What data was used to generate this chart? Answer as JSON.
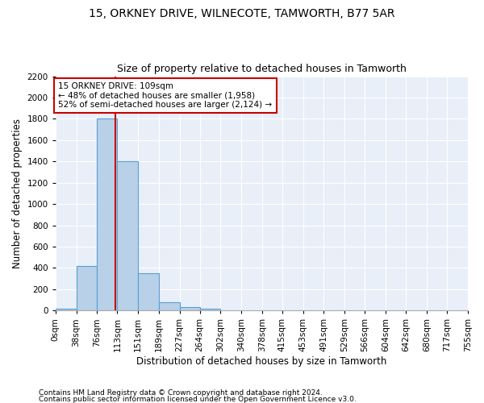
{
  "title1": "15, ORKNEY DRIVE, WILNECOTE, TAMWORTH, B77 5AR",
  "title2": "Size of property relative to detached houses in Tamworth",
  "xlabel": "Distribution of detached houses by size in Tamworth",
  "ylabel": "Number of detached properties",
  "footer1": "Contains HM Land Registry data © Crown copyright and database right 2024.",
  "footer2": "Contains public sector information licensed under the Open Government Licence v3.0.",
  "annotation_line1": "15 ORKNEY DRIVE: 109sqm",
  "annotation_line2": "← 48% of detached houses are smaller (1,958)",
  "annotation_line3": "52% of semi-detached houses are larger (2,124) →",
  "property_size": 109,
  "bin_edges": [
    0,
    38,
    76,
    113,
    151,
    189,
    227,
    264,
    302,
    340,
    378,
    415,
    453,
    491,
    529,
    566,
    604,
    642,
    680,
    717,
    755
  ],
  "bar_heights": [
    20,
    420,
    1800,
    1400,
    350,
    80,
    35,
    20,
    0,
    0,
    0,
    0,
    0,
    0,
    0,
    0,
    0,
    0,
    0,
    0
  ],
  "bar_color": "#b8d0e8",
  "bar_edge_color": "#5a9fd4",
  "vline_color": "#cc0000",
  "vline_x": 109,
  "annotation_box_color": "#cc0000",
  "background_color": "#e8eff8",
  "ylim": [
    0,
    2200
  ],
  "yticks": [
    0,
    200,
    400,
    600,
    800,
    1000,
    1200,
    1400,
    1600,
    1800,
    2000,
    2200
  ],
  "grid_color": "#d0d8e8",
  "title1_fontsize": 10,
  "title2_fontsize": 9,
  "xlabel_fontsize": 8.5,
  "ylabel_fontsize": 8.5,
  "tick_fontsize": 7.5,
  "footer_fontsize": 6.5,
  "annotation_fontsize": 7.5
}
